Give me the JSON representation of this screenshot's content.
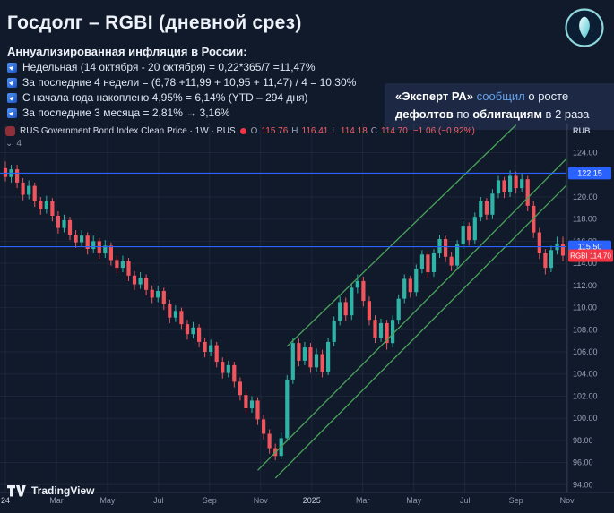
{
  "header": {
    "title": "Госдолг – RGBI (дневной срез)",
    "subtitle": "Аннуализированная инфляция в России:",
    "bullets": [
      "Недельная (14 октября - 20 октября) = 0,22*365/7 =11,47%",
      "За последние 4 недели = (6,78 +11,99 + 10,95 + 11,47) / 4 = 10,30%",
      "С начала года накоплено 4,95% = 6,14% (YTD – 294 дня)",
      "За последние 3 месяца = 2,81% → 3,16%"
    ]
  },
  "callout": {
    "line1": [
      {
        "text": "«Эксперт РА» ",
        "bold": true
      },
      {
        "text": "сообщил",
        "blue": true
      },
      {
        "text": " о росте"
      }
    ],
    "line2": [
      {
        "text": "дефолтов",
        "bold": true
      },
      {
        "text": " по "
      },
      {
        "text": "облигациям",
        "bold": true
      },
      {
        "text": " в 2 раза"
      }
    ]
  },
  "legend": {
    "title": "RUS Government Bond Index Clean Price · 1W · RUS",
    "ohlc": [
      {
        "k": "O",
        "v": "115.76"
      },
      {
        "k": "H",
        "v": "116.41"
      },
      {
        "k": "L",
        "v": "114.18"
      },
      {
        "k": "C",
        "v": "114.70"
      }
    ],
    "change": "−1.06 (−0.92%)",
    "indicator_count": "4"
  },
  "axis": {
    "currency": "RUB"
  },
  "watermark": "TradingView",
  "chart_data": {
    "type": "candlestick",
    "symbol": "RGBI",
    "timeframe": "1W",
    "price_range": [
      93.3,
      125.5
    ],
    "grid_prices": [
      124,
      122,
      120,
      118,
      116,
      114,
      112,
      110,
      108,
      106,
      104,
      102,
      100,
      98,
      96,
      94
    ],
    "price_tick_labels": [
      124,
      120,
      118,
      116,
      114,
      112,
      110,
      108,
      106,
      104,
      102,
      100,
      98,
      96,
      94
    ],
    "time_labels": [
      {
        "label": "24",
        "week": 0,
        "year": true
      },
      {
        "label": "Mar",
        "week": 8.7
      },
      {
        "label": "May",
        "week": 17.4
      },
      {
        "label": "Jul",
        "week": 26.1
      },
      {
        "label": "Sep",
        "week": 34.8
      },
      {
        "label": "Nov",
        "week": 43.5
      },
      {
        "label": "2025",
        "week": 52.2,
        "year": true
      },
      {
        "label": "Mar",
        "week": 60.9
      },
      {
        "label": "May",
        "week": 69.6
      },
      {
        "label": "Jul",
        "week": 78.3
      },
      {
        "label": "Sep",
        "week": 87.0
      },
      {
        "label": "Nov",
        "week": 95.7
      }
    ],
    "hlines": [
      {
        "price": 122.15,
        "color": "#2962ff"
      },
      {
        "price": 115.5,
        "color": "#2962ff"
      }
    ],
    "last_price": {
      "label": "RGBI",
      "price": 114.7,
      "color": "#f23645"
    },
    "channel": [
      {
        "w1": 43,
        "p1": 95.3,
        "w2": 97,
        "p2": 124.2
      },
      {
        "w1": 46,
        "p1": 94.6,
        "w2": 97,
        "p2": 121.8
      },
      {
        "w1": 48,
        "p1": 106.5,
        "w2": 87,
        "p2": 126.5
      }
    ],
    "colors": {
      "up": "#2fb3a6",
      "down": "#f0545c",
      "channel": "#49a35a"
    },
    "candles": [
      [
        122.6,
        123.2,
        121.4,
        121.8
      ],
      [
        121.8,
        122.9,
        121.3,
        122.5
      ],
      [
        122.5,
        122.9,
        120.8,
        121.3
      ],
      [
        121.3,
        121.7,
        119.7,
        120.2
      ],
      [
        120.2,
        121.5,
        119.8,
        121.0
      ],
      [
        121.0,
        121.3,
        119.1,
        119.6
      ],
      [
        119.6,
        120.0,
        118.4,
        118.9
      ],
      [
        118.9,
        120.1,
        118.5,
        119.6
      ],
      [
        119.6,
        119.9,
        117.8,
        118.3
      ],
      [
        118.3,
        118.7,
        116.7,
        117.2
      ],
      [
        117.2,
        118.4,
        116.8,
        117.9
      ],
      [
        117.9,
        118.2,
        116.1,
        116.6
      ],
      [
        116.6,
        117.0,
        115.4,
        115.9
      ],
      [
        115.9,
        117.0,
        115.5,
        116.5
      ],
      [
        116.5,
        116.8,
        114.8,
        115.3
      ],
      [
        115.3,
        116.5,
        114.9,
        116.0
      ],
      [
        116.0,
        116.3,
        114.4,
        114.9
      ],
      [
        114.9,
        116.1,
        114.5,
        115.6
      ],
      [
        115.6,
        115.9,
        113.8,
        114.3
      ],
      [
        114.3,
        114.7,
        113.1,
        113.6
      ],
      [
        113.6,
        114.7,
        113.2,
        114.2
      ],
      [
        114.2,
        114.5,
        112.4,
        112.9
      ],
      [
        112.9,
        113.3,
        111.6,
        112.1
      ],
      [
        112.1,
        113.2,
        111.7,
        112.7
      ],
      [
        112.7,
        113.0,
        111.1,
        111.6
      ],
      [
        111.6,
        112.0,
        110.4,
        110.9
      ],
      [
        110.9,
        112.0,
        110.5,
        111.5
      ],
      [
        111.5,
        111.8,
        109.8,
        110.3
      ],
      [
        110.3,
        110.7,
        108.6,
        109.1
      ],
      [
        109.1,
        110.2,
        108.7,
        109.7
      ],
      [
        109.7,
        110.0,
        108.0,
        108.5
      ],
      [
        108.5,
        108.9,
        107.1,
        107.6
      ],
      [
        107.6,
        108.7,
        107.2,
        108.2
      ],
      [
        108.2,
        108.5,
        106.4,
        106.9
      ],
      [
        106.9,
        107.3,
        105.5,
        106.0
      ],
      [
        106.0,
        107.1,
        105.6,
        106.6
      ],
      [
        106.6,
        106.9,
        104.6,
        105.1
      ],
      [
        105.1,
        105.5,
        103.6,
        104.1
      ],
      [
        104.1,
        105.2,
        103.7,
        104.8
      ],
      [
        104.8,
        105.1,
        102.8,
        103.3
      ],
      [
        103.3,
        103.7,
        101.6,
        102.1
      ],
      [
        102.1,
        102.5,
        100.4,
        100.9
      ],
      [
        100.9,
        102.0,
        100.5,
        101.6
      ],
      [
        101.6,
        101.9,
        99.4,
        99.9
      ],
      [
        99.9,
        100.3,
        98.1,
        98.6
      ],
      [
        98.6,
        99.0,
        96.8,
        97.3
      ],
      [
        97.3,
        97.7,
        96.2,
        96.6
      ],
      [
        96.6,
        98.7,
        96.3,
        98.2
      ],
      [
        98.2,
        103.9,
        97.9,
        103.5
      ],
      [
        103.5,
        107.3,
        103.1,
        106.8
      ],
      [
        106.8,
        107.2,
        104.7,
        105.2
      ],
      [
        105.2,
        106.9,
        104.8,
        106.4
      ],
      [
        106.4,
        106.8,
        104.1,
        104.6
      ],
      [
        104.6,
        106.3,
        104.2,
        105.8
      ],
      [
        105.8,
        106.2,
        103.7,
        104.2
      ],
      [
        104.2,
        107.3,
        103.9,
        106.9
      ],
      [
        106.9,
        109.2,
        106.5,
        108.8
      ],
      [
        108.8,
        111.0,
        108.4,
        110.5
      ],
      [
        110.5,
        110.9,
        108.8,
        109.3
      ],
      [
        109.3,
        112.2,
        108.9,
        111.8
      ],
      [
        111.8,
        113.0,
        111.3,
        112.4
      ],
      [
        112.4,
        112.8,
        110.1,
        110.6
      ],
      [
        110.6,
        111.0,
        108.4,
        108.9
      ],
      [
        108.9,
        109.3,
        106.8,
        107.3
      ],
      [
        107.3,
        109.0,
        106.9,
        108.6
      ],
      [
        108.6,
        108.9,
        106.2,
        106.8
      ],
      [
        106.8,
        109.3,
        106.4,
        108.9
      ],
      [
        108.9,
        111.2,
        108.5,
        110.8
      ],
      [
        110.8,
        113.0,
        110.4,
        112.6
      ],
      [
        112.6,
        112.9,
        110.9,
        111.4
      ],
      [
        111.4,
        113.9,
        111.0,
        113.5
      ],
      [
        113.5,
        115.2,
        113.1,
        114.8
      ],
      [
        114.8,
        115.1,
        112.7,
        113.2
      ],
      [
        113.2,
        115.3,
        112.8,
        114.9
      ],
      [
        114.9,
        116.6,
        114.5,
        116.2
      ],
      [
        116.2,
        116.5,
        114.1,
        114.6
      ],
      [
        114.6,
        115.0,
        113.3,
        113.8
      ],
      [
        113.8,
        116.1,
        113.4,
        115.7
      ],
      [
        115.7,
        117.8,
        115.3,
        117.4
      ],
      [
        117.4,
        117.7,
        115.6,
        116.1
      ],
      [
        116.1,
        118.6,
        115.7,
        118.2
      ],
      [
        118.2,
        120.0,
        117.8,
        119.6
      ],
      [
        119.6,
        119.9,
        117.9,
        118.4
      ],
      [
        118.4,
        120.7,
        118.0,
        120.3
      ],
      [
        120.3,
        121.9,
        119.9,
        121.5
      ],
      [
        121.5,
        121.8,
        119.9,
        120.4
      ],
      [
        120.4,
        122.4,
        120.0,
        121.9
      ],
      [
        121.9,
        122.3,
        120.3,
        120.8
      ],
      [
        120.8,
        122.1,
        120.4,
        121.6
      ],
      [
        121.6,
        121.9,
        118.7,
        119.2
      ],
      [
        119.2,
        119.6,
        116.3,
        116.8
      ],
      [
        116.8,
        117.2,
        114.4,
        114.9
      ],
      [
        114.9,
        115.3,
        113.0,
        113.6
      ],
      [
        113.6,
        115.6,
        113.2,
        115.2
      ],
      [
        115.2,
        116.4,
        114.8,
        115.8
      ],
      [
        115.76,
        116.41,
        114.18,
        114.7
      ]
    ]
  }
}
